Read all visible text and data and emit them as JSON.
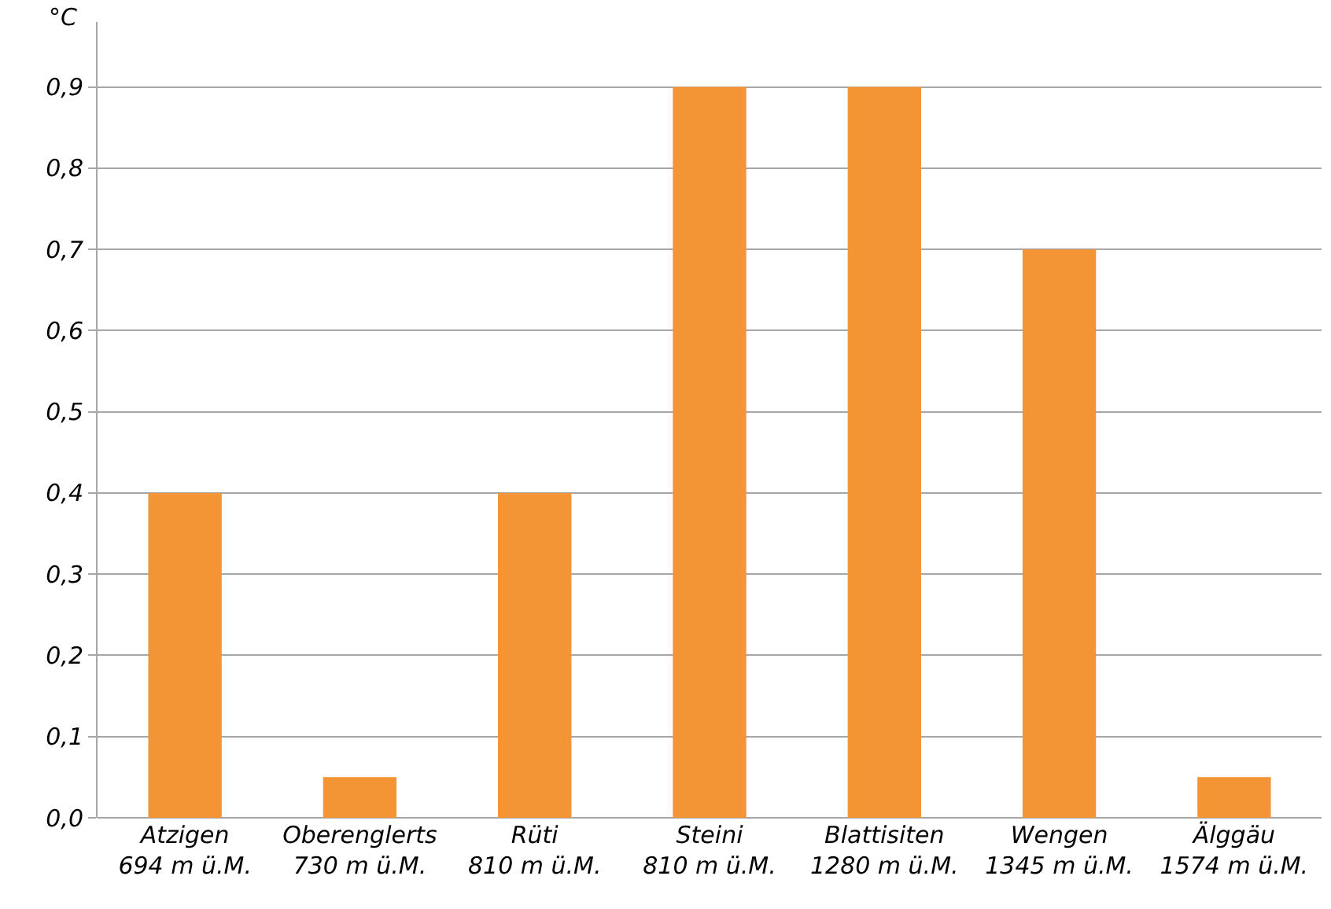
{
  "chart_data": {
    "type": "bar",
    "ylabel": "°C",
    "categories": [
      "Atzigen\n694 m ü.M.",
      "Oberenglerts\n730 m ü.M.",
      "Rüti\n810 m ü.M.",
      "Steini\n810 m ü.M.",
      "Blattisiten\n1280 m ü.M.",
      "Wengen\n1345 m ü.M.",
      "Älggäu\n1574 m ü.M."
    ],
    "values": [
      0.4,
      0.05,
      0.4,
      0.9,
      0.9,
      0.7,
      0.05
    ],
    "color": "#f39435",
    "ylim": [
      0,
      0.98
    ],
    "yticks": [
      {
        "value": 0,
        "label": "0,0"
      },
      {
        "value": 0.1,
        "label": "0,1"
      },
      {
        "value": 0.2,
        "label": "0,2"
      },
      {
        "value": 0.3,
        "label": "0,3"
      },
      {
        "value": 0.4,
        "label": "0,4"
      },
      {
        "value": 0.5,
        "label": "0,5"
      },
      {
        "value": 0.6,
        "label": "0,6"
      },
      {
        "value": 0.7,
        "label": "0,7"
      },
      {
        "value": 0.8,
        "label": "0,8"
      },
      {
        "value": 0.9,
        "label": "0,9"
      }
    ],
    "grid": "y",
    "legend": false
  }
}
